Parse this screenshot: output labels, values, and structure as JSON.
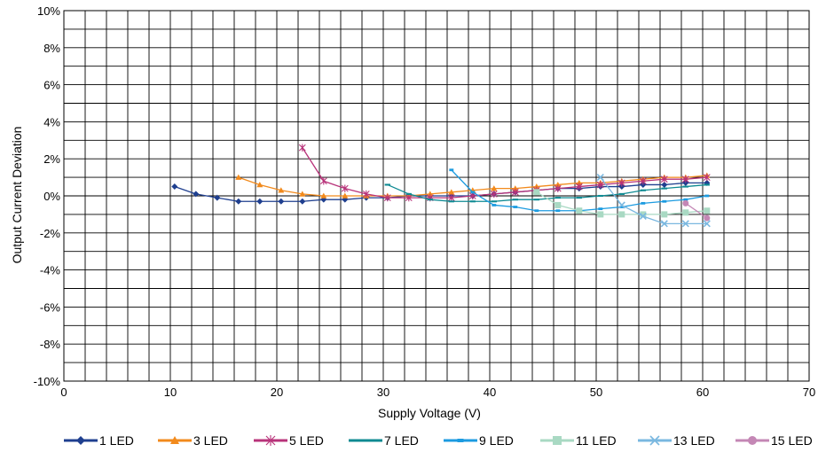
{
  "chart_data": {
    "type": "line",
    "title": "",
    "xlabel": "Supply Voltage (V)",
    "ylabel": "Output Current Deviation",
    "xlim": [
      0,
      70
    ],
    "ylim": [
      -10,
      10
    ],
    "x_ticks": [
      "0",
      "10",
      "20",
      "30",
      "40",
      "50",
      "60",
      "70"
    ],
    "y_ticks": [
      "-10%",
      "-8%",
      "-6%",
      "-4%",
      "-2%",
      "0%",
      "2%",
      "4%",
      "6%",
      "8%",
      "10%"
    ],
    "grid": true,
    "legend_position": "bottom",
    "series": [
      {
        "name": "1 LED",
        "color": "#1f3f8f",
        "marker": "diamond",
        "points": [
          [
            10.4,
            0.5
          ],
          [
            12.4,
            0.1
          ],
          [
            14.4,
            -0.1
          ],
          [
            16.4,
            -0.3
          ],
          [
            18.4,
            -0.3
          ],
          [
            20.4,
            -0.3
          ],
          [
            22.4,
            -0.3
          ],
          [
            24.4,
            -0.2
          ],
          [
            26.4,
            -0.2
          ],
          [
            28.4,
            -0.1
          ],
          [
            30.4,
            -0.1
          ],
          [
            32.4,
            0.0
          ],
          [
            34.4,
            0.0
          ],
          [
            36.4,
            0.0
          ],
          [
            38.4,
            0.0
          ],
          [
            40.4,
            0.1
          ],
          [
            42.4,
            0.2
          ],
          [
            44.4,
            0.3
          ],
          [
            46.4,
            0.4
          ],
          [
            48.4,
            0.4
          ],
          [
            50.4,
            0.5
          ],
          [
            52.4,
            0.5
          ],
          [
            54.4,
            0.6
          ],
          [
            56.4,
            0.6
          ],
          [
            58.4,
            0.7
          ],
          [
            60.4,
            0.7
          ]
        ]
      },
      {
        "name": "3 LED",
        "color": "#f28a1c",
        "marker": "triangle",
        "points": [
          [
            16.4,
            1.0
          ],
          [
            18.4,
            0.6
          ],
          [
            20.4,
            0.3
          ],
          [
            22.4,
            0.1
          ],
          [
            24.4,
            0.0
          ],
          [
            26.4,
            0.0
          ],
          [
            28.4,
            0.0
          ],
          [
            30.4,
            0.0
          ],
          [
            32.4,
            0.0
          ],
          [
            34.4,
            0.1
          ],
          [
            36.4,
            0.2
          ],
          [
            38.4,
            0.3
          ],
          [
            40.4,
            0.4
          ],
          [
            42.4,
            0.4
          ],
          [
            44.4,
            0.5
          ],
          [
            46.4,
            0.6
          ],
          [
            48.4,
            0.7
          ],
          [
            50.4,
            0.7
          ],
          [
            52.4,
            0.8
          ],
          [
            54.4,
            0.9
          ],
          [
            56.4,
            1.0
          ],
          [
            58.4,
            1.0
          ],
          [
            60.4,
            1.1
          ]
        ]
      },
      {
        "name": "5 LED",
        "color": "#b8337a",
        "marker": "star",
        "points": [
          [
            22.4,
            2.6
          ],
          [
            24.4,
            0.8
          ],
          [
            26.4,
            0.4
          ],
          [
            28.4,
            0.1
          ],
          [
            30.4,
            -0.1
          ],
          [
            32.4,
            -0.1
          ],
          [
            34.4,
            -0.1
          ],
          [
            36.4,
            -0.1
          ],
          [
            38.4,
            0.0
          ],
          [
            40.4,
            0.1
          ],
          [
            42.4,
            0.2
          ],
          [
            44.4,
            0.3
          ],
          [
            46.4,
            0.4
          ],
          [
            48.4,
            0.5
          ],
          [
            50.4,
            0.6
          ],
          [
            52.4,
            0.7
          ],
          [
            54.4,
            0.8
          ],
          [
            56.4,
            0.9
          ],
          [
            58.4,
            0.9
          ],
          [
            60.4,
            1.0
          ]
        ]
      },
      {
        "name": "7 LED",
        "color": "#0e8a92",
        "marker": "bar",
        "points": [
          [
            30.4,
            0.6
          ],
          [
            32.4,
            0.1
          ],
          [
            34.4,
            -0.2
          ],
          [
            36.4,
            -0.3
          ],
          [
            38.4,
            -0.3
          ],
          [
            40.4,
            -0.3
          ],
          [
            42.4,
            -0.2
          ],
          [
            44.4,
            -0.2
          ],
          [
            46.4,
            -0.1
          ],
          [
            48.4,
            -0.1
          ],
          [
            50.4,
            0.0
          ],
          [
            52.4,
            0.1
          ],
          [
            54.4,
            0.3
          ],
          [
            56.4,
            0.4
          ],
          [
            58.4,
            0.5
          ],
          [
            60.4,
            0.6
          ]
        ]
      },
      {
        "name": "9 LED",
        "color": "#1c9be0",
        "marker": "dash",
        "points": [
          [
            36.4,
            1.4
          ],
          [
            38.4,
            0.2
          ],
          [
            40.4,
            -0.5
          ],
          [
            42.4,
            -0.6
          ],
          [
            44.4,
            -0.8
          ],
          [
            46.4,
            -0.8
          ],
          [
            48.4,
            -0.8
          ],
          [
            50.4,
            -0.7
          ],
          [
            52.4,
            -0.6
          ],
          [
            54.4,
            -0.4
          ],
          [
            56.4,
            -0.3
          ],
          [
            58.4,
            -0.2
          ],
          [
            60.4,
            0.0
          ]
        ]
      },
      {
        "name": "11 LED",
        "color": "#a9d9c3",
        "marker": "square",
        "points": [
          [
            44.4,
            0.2
          ],
          [
            46.4,
            -0.5
          ],
          [
            48.4,
            -0.8
          ],
          [
            50.4,
            -1.0
          ],
          [
            52.4,
            -1.0
          ],
          [
            54.4,
            -1.0
          ],
          [
            56.4,
            -1.0
          ],
          [
            58.4,
            -0.9
          ],
          [
            60.4,
            -0.8
          ]
        ]
      },
      {
        "name": "13 LED",
        "color": "#7ab8e0",
        "marker": "x",
        "points": [
          [
            50.4,
            1.0
          ],
          [
            52.4,
            -0.5
          ],
          [
            54.4,
            -1.1
          ],
          [
            56.4,
            -1.5
          ],
          [
            58.4,
            -1.5
          ],
          [
            60.4,
            -1.5
          ]
        ]
      },
      {
        "name": "15 LED",
        "color": "#c487b5",
        "marker": "circle",
        "points": [
          [
            58.4,
            -0.4
          ],
          [
            60.4,
            -1.2
          ]
        ]
      }
    ]
  }
}
